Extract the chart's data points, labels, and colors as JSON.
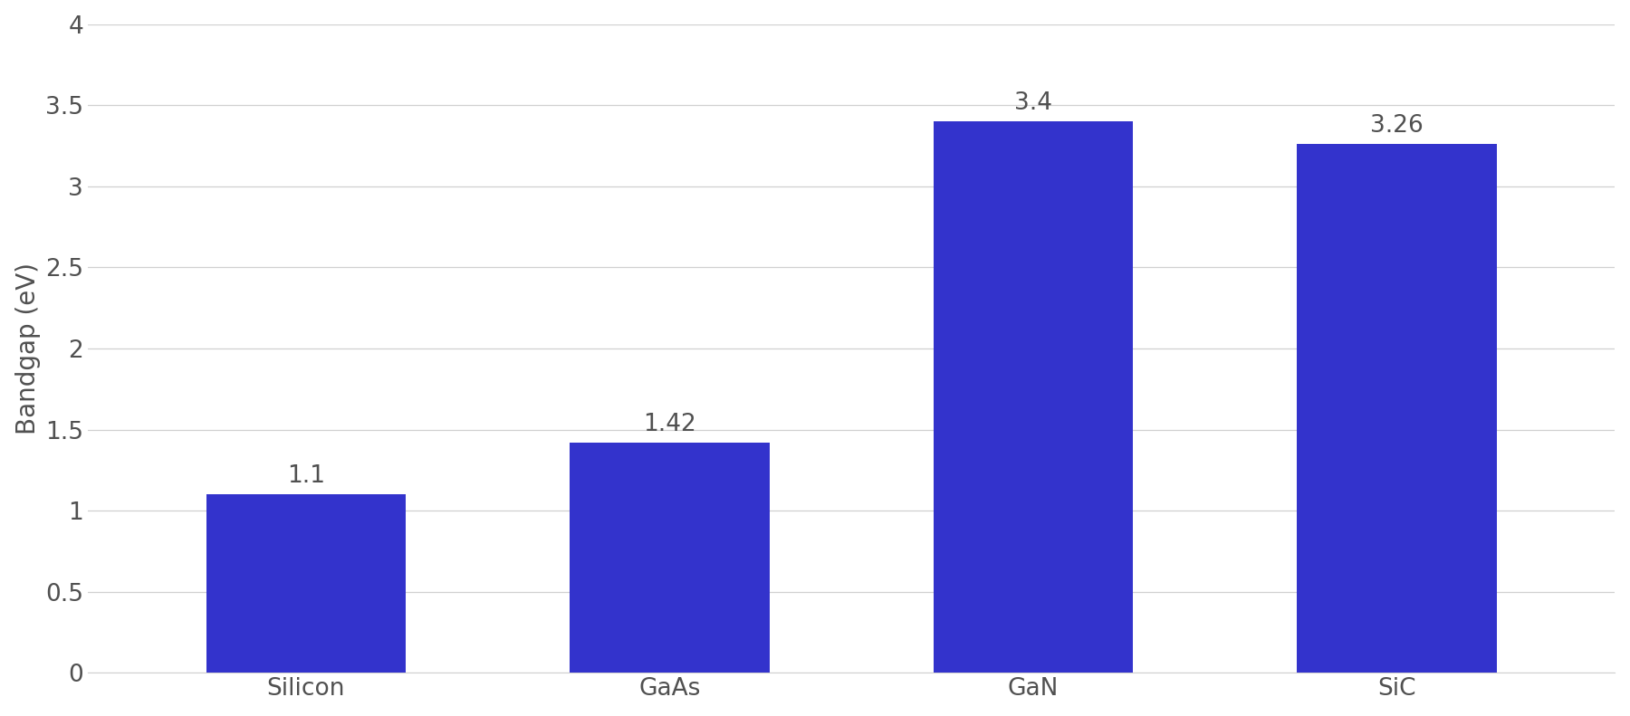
{
  "categories": [
    "Silicon",
    "GaAs",
    "GaN",
    "SiC"
  ],
  "values": [
    1.1,
    1.42,
    3.4,
    3.26
  ],
  "bar_color": "#3333cc",
  "ylabel": "Bandgap (eV)",
  "ylim": [
    0,
    4
  ],
  "yticks": [
    0,
    0.5,
    1,
    1.5,
    2,
    2.5,
    3,
    3.5,
    4
  ],
  "label_fontsize": 20,
  "tick_fontsize": 19,
  "value_label_fontsize": 19,
  "bar_width": 0.55,
  "background_color": "#ffffff",
  "grid_color": "#d0d0d0",
  "text_color": "#505050"
}
